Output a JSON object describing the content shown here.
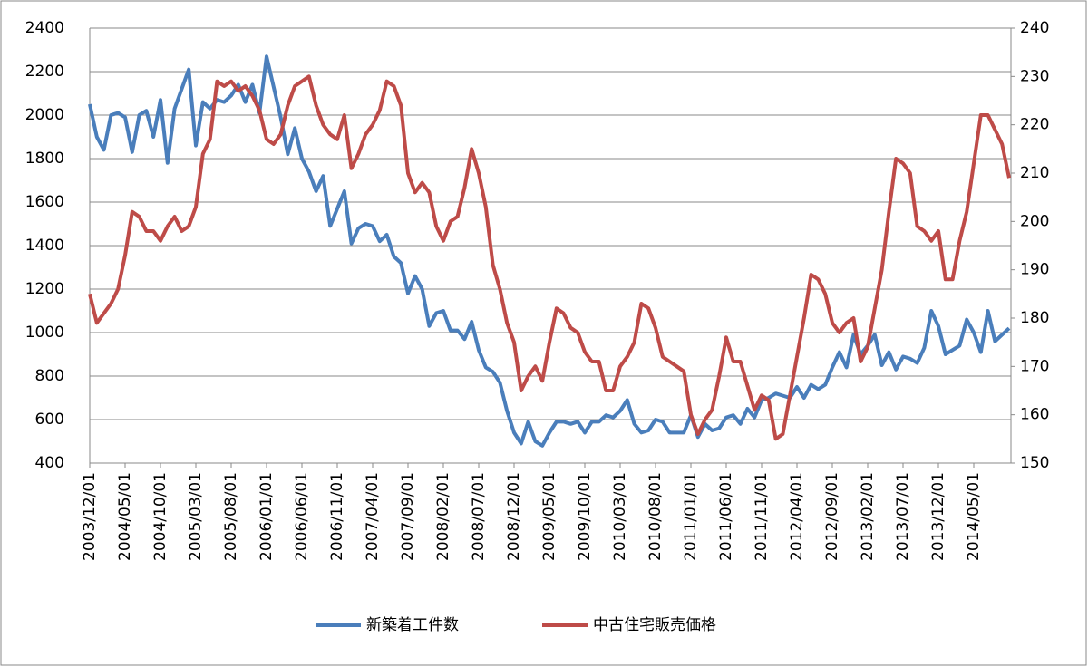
{
  "chart_data": {
    "type": "line",
    "categories": [
      "2003/12/01",
      null,
      null,
      null,
      null,
      "2004/05/01",
      null,
      null,
      null,
      null,
      "2004/10/01",
      null,
      null,
      null,
      null,
      "2005/03/01",
      null,
      null,
      null,
      null,
      "2005/08/01",
      null,
      null,
      null,
      null,
      "2006/01/01",
      null,
      null,
      null,
      null,
      "2006/06/01",
      null,
      null,
      null,
      null,
      "2006/11/01",
      null,
      null,
      null,
      null,
      "2007/04/01",
      null,
      null,
      null,
      null,
      "2007/09/01",
      null,
      null,
      null,
      null,
      "2008/02/01",
      null,
      null,
      null,
      null,
      "2008/07/01",
      null,
      null,
      null,
      null,
      "2008/12/01",
      null,
      null,
      null,
      null,
      "2009/05/01",
      null,
      null,
      null,
      null,
      "2009/10/01",
      null,
      null,
      null,
      null,
      "2010/03/01",
      null,
      null,
      null,
      null,
      "2010/08/01",
      null,
      null,
      null,
      null,
      "2011/01/01",
      null,
      null,
      null,
      null,
      "2011/06/01",
      null,
      null,
      null,
      null,
      "2011/11/01",
      null,
      null,
      null,
      null,
      "2012/04/01",
      null,
      null,
      null,
      null,
      "2012/09/01",
      null,
      null,
      null,
      null,
      "2013/02/01",
      null,
      null,
      null,
      null,
      "2013/07/01",
      null,
      null,
      null,
      null,
      "2013/12/01",
      null,
      null,
      null,
      null,
      "2014/05/01",
      null,
      null,
      null,
      null,
      null
    ],
    "series": [
      {
        "name": "新築着工件数",
        "color": "#4a7ebb",
        "axis": "y",
        "values": [
          2050,
          1900,
          1840,
          2000,
          2010,
          1990,
          1830,
          2000,
          2020,
          1900,
          2070,
          1780,
          2030,
          2120,
          2210,
          1860,
          2060,
          2030,
          2070,
          2060,
          2090,
          2140,
          2060,
          2140,
          2010,
          2270,
          2130,
          1990,
          1820,
          1940,
          1800,
          1740,
          1650,
          1720,
          1490,
          1570,
          1650,
          1410,
          1480,
          1500,
          1490,
          1420,
          1450,
          1350,
          1320,
          1180,
          1260,
          1200,
          1030,
          1090,
          1100,
          1010,
          1010,
          970,
          1050,
          920,
          840,
          820,
          770,
          640,
          540,
          490,
          590,
          500,
          480,
          540,
          590,
          590,
          580,
          590,
          540,
          590,
          590,
          620,
          610,
          640,
          690,
          580,
          540,
          550,
          600,
          590,
          540,
          540,
          540,
          620,
          520,
          580,
          550,
          560,
          610,
          620,
          580,
          650,
          610,
          690,
          700,
          720,
          710,
          700,
          750,
          700,
          760,
          740,
          760,
          840,
          910,
          840,
          990,
          900,
          940,
          990,
          850,
          910,
          830,
          890,
          880,
          860,
          930,
          1100,
          1030,
          900,
          920,
          940,
          1060,
          1000,
          910,
          1100,
          960,
          990,
          1020
        ]
      },
      {
        "name": "中古住宅販売価格",
        "color": "#be4b48",
        "axis": "y2",
        "values": [
          185,
          179,
          181,
          183,
          186,
          193,
          202,
          201,
          198,
          198,
          196,
          199,
          201,
          198,
          199,
          203,
          214,
          217,
          229,
          228,
          229,
          227,
          228,
          226,
          223,
          217,
          216,
          218,
          224,
          228,
          229,
          230,
          224,
          220,
          218,
          217,
          222,
          211,
          214,
          218,
          220,
          223,
          229,
          228,
          224,
          210,
          206,
          208,
          206,
          199,
          196,
          200,
          201,
          207,
          215,
          210,
          203,
          191,
          186,
          179,
          175,
          165,
          168,
          170,
          167,
          175,
          182,
          181,
          178,
          177,
          173,
          171,
          171,
          165,
          165,
          170,
          172,
          175,
          183,
          182,
          178,
          172,
          171,
          170,
          169,
          160,
          156,
          159,
          161,
          168,
          176,
          171,
          171,
          166,
          161,
          164,
          163,
          155,
          156,
          164,
          172,
          180,
          189,
          188,
          185,
          179,
          177,
          179,
          180,
          171,
          174,
          182,
          190,
          202,
          213,
          212,
          210,
          199,
          198,
          196,
          198,
          188,
          188,
          196,
          202,
          212,
          222,
          222,
          219,
          216,
          209
        ]
      }
    ],
    "ylim": [
      400,
      2400
    ],
    "yticks": [
      400,
      600,
      800,
      1000,
      1200,
      1400,
      1600,
      1800,
      2000,
      2200,
      2400
    ],
    "y2lim": [
      150,
      240
    ],
    "y2ticks": [
      150,
      160,
      170,
      180,
      190,
      200,
      210,
      220,
      230,
      240
    ],
    "grid": true,
    "legend": "bottom"
  }
}
